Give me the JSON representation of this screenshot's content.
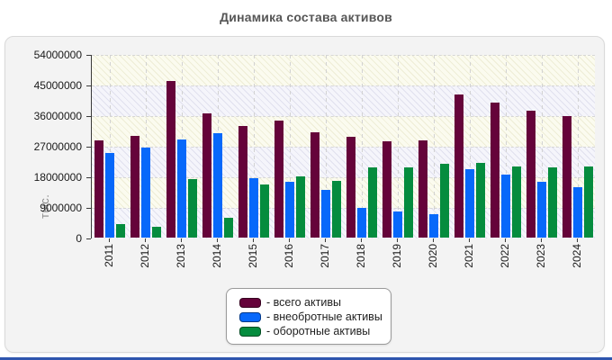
{
  "title": "Динамика состава активов",
  "y_axis": {
    "label": "тыс.",
    "ticks": [
      "54000000",
      "45000000",
      "36000000",
      "27000000",
      "18000000",
      "9000000",
      "0"
    ],
    "max": 54000000
  },
  "legend": {
    "items": [
      {
        "label": "- всего активы",
        "color": "#65033A",
        "border": "#3e0124"
      },
      {
        "label": "- внеобротные активы",
        "color": "#0768FA",
        "border": "#0446a8"
      },
      {
        "label": "- оборотные активы",
        "color": "#058C3E",
        "border": "#035а28"
      }
    ]
  },
  "chart_data": {
    "type": "bar",
    "title": "Динамика состава активов",
    "xlabel": "",
    "ylabel": "тыс.",
    "ylim": [
      0,
      54000000
    ],
    "grid": true,
    "legend_position": "bottom",
    "categories": [
      "2011",
      "2012",
      "2013",
      "2014",
      "2015",
      "2016",
      "2017",
      "2018",
      "2019",
      "2020",
      "2021",
      "2022",
      "2023",
      "2024"
    ],
    "series": [
      {
        "name": "всего активы",
        "color": "#65033A",
        "values": [
          28700000,
          29800000,
          46100000,
          36500000,
          32900000,
          34400000,
          31000000,
          29600000,
          28400000,
          28600000,
          42000000,
          39600000,
          37300000,
          35700000
        ]
      },
      {
        "name": "внеобротные активы",
        "color": "#0768FA",
        "values": [
          24900000,
          26500000,
          28900000,
          30700000,
          17400000,
          16500000,
          14000000,
          8800000,
          7800000,
          6900000,
          20000000,
          18500000,
          16400000,
          14700000
        ]
      },
      {
        "name": "оборотные активы",
        "color": "#058C3E",
        "values": [
          3900000,
          3300000,
          17200000,
          5800000,
          15500000,
          18100000,
          16800000,
          20700000,
          20700000,
          21800000,
          21900000,
          21000000,
          20700000,
          20900000
        ]
      }
    ]
  }
}
